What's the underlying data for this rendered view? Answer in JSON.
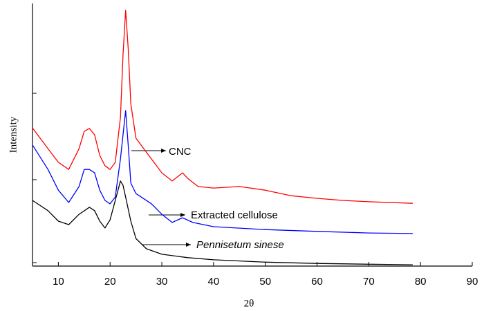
{
  "chart_data": {
    "type": "line",
    "x_label": "2θ",
    "y_label": "Intensity",
    "xlim": [
      5,
      90
    ],
    "xticks": [
      10,
      20,
      30,
      40,
      50,
      60,
      70,
      80,
      90
    ],
    "ylim": [
      0,
      100
    ],
    "series": [
      {
        "name": "CNC",
        "color": "#ff0000",
        "x": [
          5,
          8,
          10,
          12,
          14,
          15,
          16,
          17,
          18,
          19,
          20,
          21,
          22,
          22.5,
          23,
          23.5,
          24,
          25,
          27,
          30,
          32,
          34,
          35,
          37,
          40,
          45,
          50,
          55,
          60,
          65,
          70,
          78.5
        ],
        "values": [
          52.6,
          44.7,
          39.5,
          36.8,
          44.7,
          51.3,
          52.4,
          50,
          42.1,
          38.2,
          36.8,
          39.5,
          56.6,
          80.3,
          97.4,
          82.9,
          61.8,
          48.7,
          43.4,
          35.5,
          32.4,
          35.5,
          33.4,
          30.3,
          29.7,
          30.3,
          28.9,
          26.8,
          25.8,
          25,
          24.5,
          23.9
        ]
      },
      {
        "name": "Extracted cellulose",
        "color": "#0000ff",
        "x": [
          5,
          8,
          10,
          12,
          14,
          15,
          16,
          17,
          18,
          19,
          20,
          21,
          22,
          23,
          23.5,
          24,
          25,
          28,
          30,
          32,
          34,
          36,
          40,
          50,
          60,
          70,
          78.5
        ],
        "values": [
          46.1,
          36.8,
          28.9,
          24.2,
          30.3,
          36.8,
          36.8,
          35.5,
          28.9,
          25,
          23.7,
          26.3,
          40.8,
          59.2,
          46.1,
          31.6,
          27.6,
          23.7,
          19.7,
          16.6,
          18.4,
          16.6,
          15,
          13.9,
          13.2,
          12.6,
          12.4
        ]
      },
      {
        "name": "Pennisetum sinese",
        "color": "#000000",
        "x": [
          5,
          8,
          10,
          12,
          14,
          16,
          17,
          18,
          19,
          20,
          21,
          22,
          22.5,
          23,
          24,
          25,
          27,
          30,
          35,
          40,
          50,
          60,
          70,
          78.5
        ],
        "values": [
          25,
          21.1,
          17.1,
          15.8,
          19.7,
          22.4,
          21.1,
          17.1,
          14.5,
          17.6,
          25,
          32.4,
          30.8,
          26.3,
          17.1,
          10.5,
          6.6,
          4.5,
          3.2,
          2.4,
          1.5,
          1,
          0.7,
          0.5
        ]
      }
    ]
  }
}
